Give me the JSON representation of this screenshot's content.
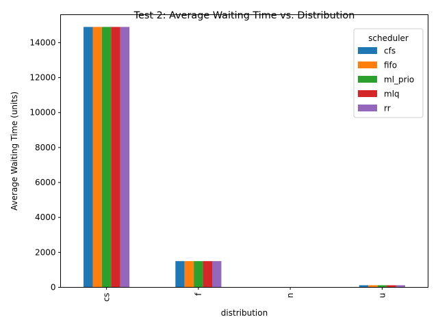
{
  "chart_data": {
    "type": "bar",
    "title": "Test 2: Average Waiting Time vs. Distribution",
    "xlabel": "distribution",
    "ylabel": "Average Waiting Time (units)",
    "categories": [
      "cs",
      "f",
      "n",
      "u"
    ],
    "ylim": [
      0,
      15600
    ],
    "yticks": [
      0,
      2000,
      4000,
      6000,
      8000,
      10000,
      12000,
      14000
    ],
    "grid": false,
    "legend": {
      "title": "scheduler",
      "placement": "top-right"
    },
    "series": [
      {
        "name": "cfs",
        "color": "#1f77b4",
        "values": [
          14900,
          1500,
          10,
          120
        ]
      },
      {
        "name": "fifo",
        "color": "#ff7f0e",
        "values": [
          14900,
          1500,
          10,
          120
        ]
      },
      {
        "name": "ml_prio",
        "color": "#2ca02c",
        "values": [
          14900,
          1500,
          10,
          120
        ]
      },
      {
        "name": "mlq",
        "color": "#d62728",
        "values": [
          14900,
          1500,
          10,
          120
        ]
      },
      {
        "name": "rr",
        "color": "#9467bd",
        "values": [
          14900,
          1500,
          10,
          120
        ]
      }
    ]
  }
}
